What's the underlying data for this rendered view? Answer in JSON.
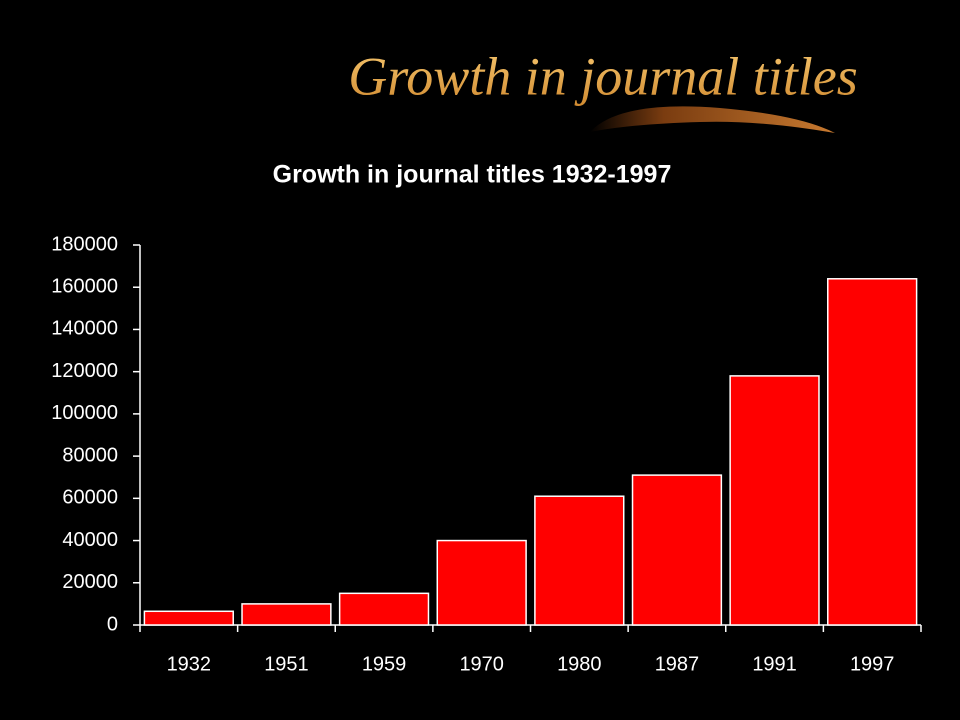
{
  "slide_title": "Growth in journal titles",
  "chart_data": {
    "type": "bar",
    "title": "Growth in journal titles 1932-1997",
    "categories": [
      "1932",
      "1951",
      "1959",
      "1970",
      "1980",
      "1987",
      "1991",
      "1997"
    ],
    "values": [
      6500,
      10000,
      15000,
      40000,
      61000,
      71000,
      118000,
      164000
    ],
    "color": "#ff0000",
    "ylim": [
      0,
      180000
    ],
    "yticks": [
      0,
      20000,
      40000,
      60000,
      80000,
      100000,
      120000,
      140000,
      160000,
      180000
    ],
    "grid": false
  }
}
